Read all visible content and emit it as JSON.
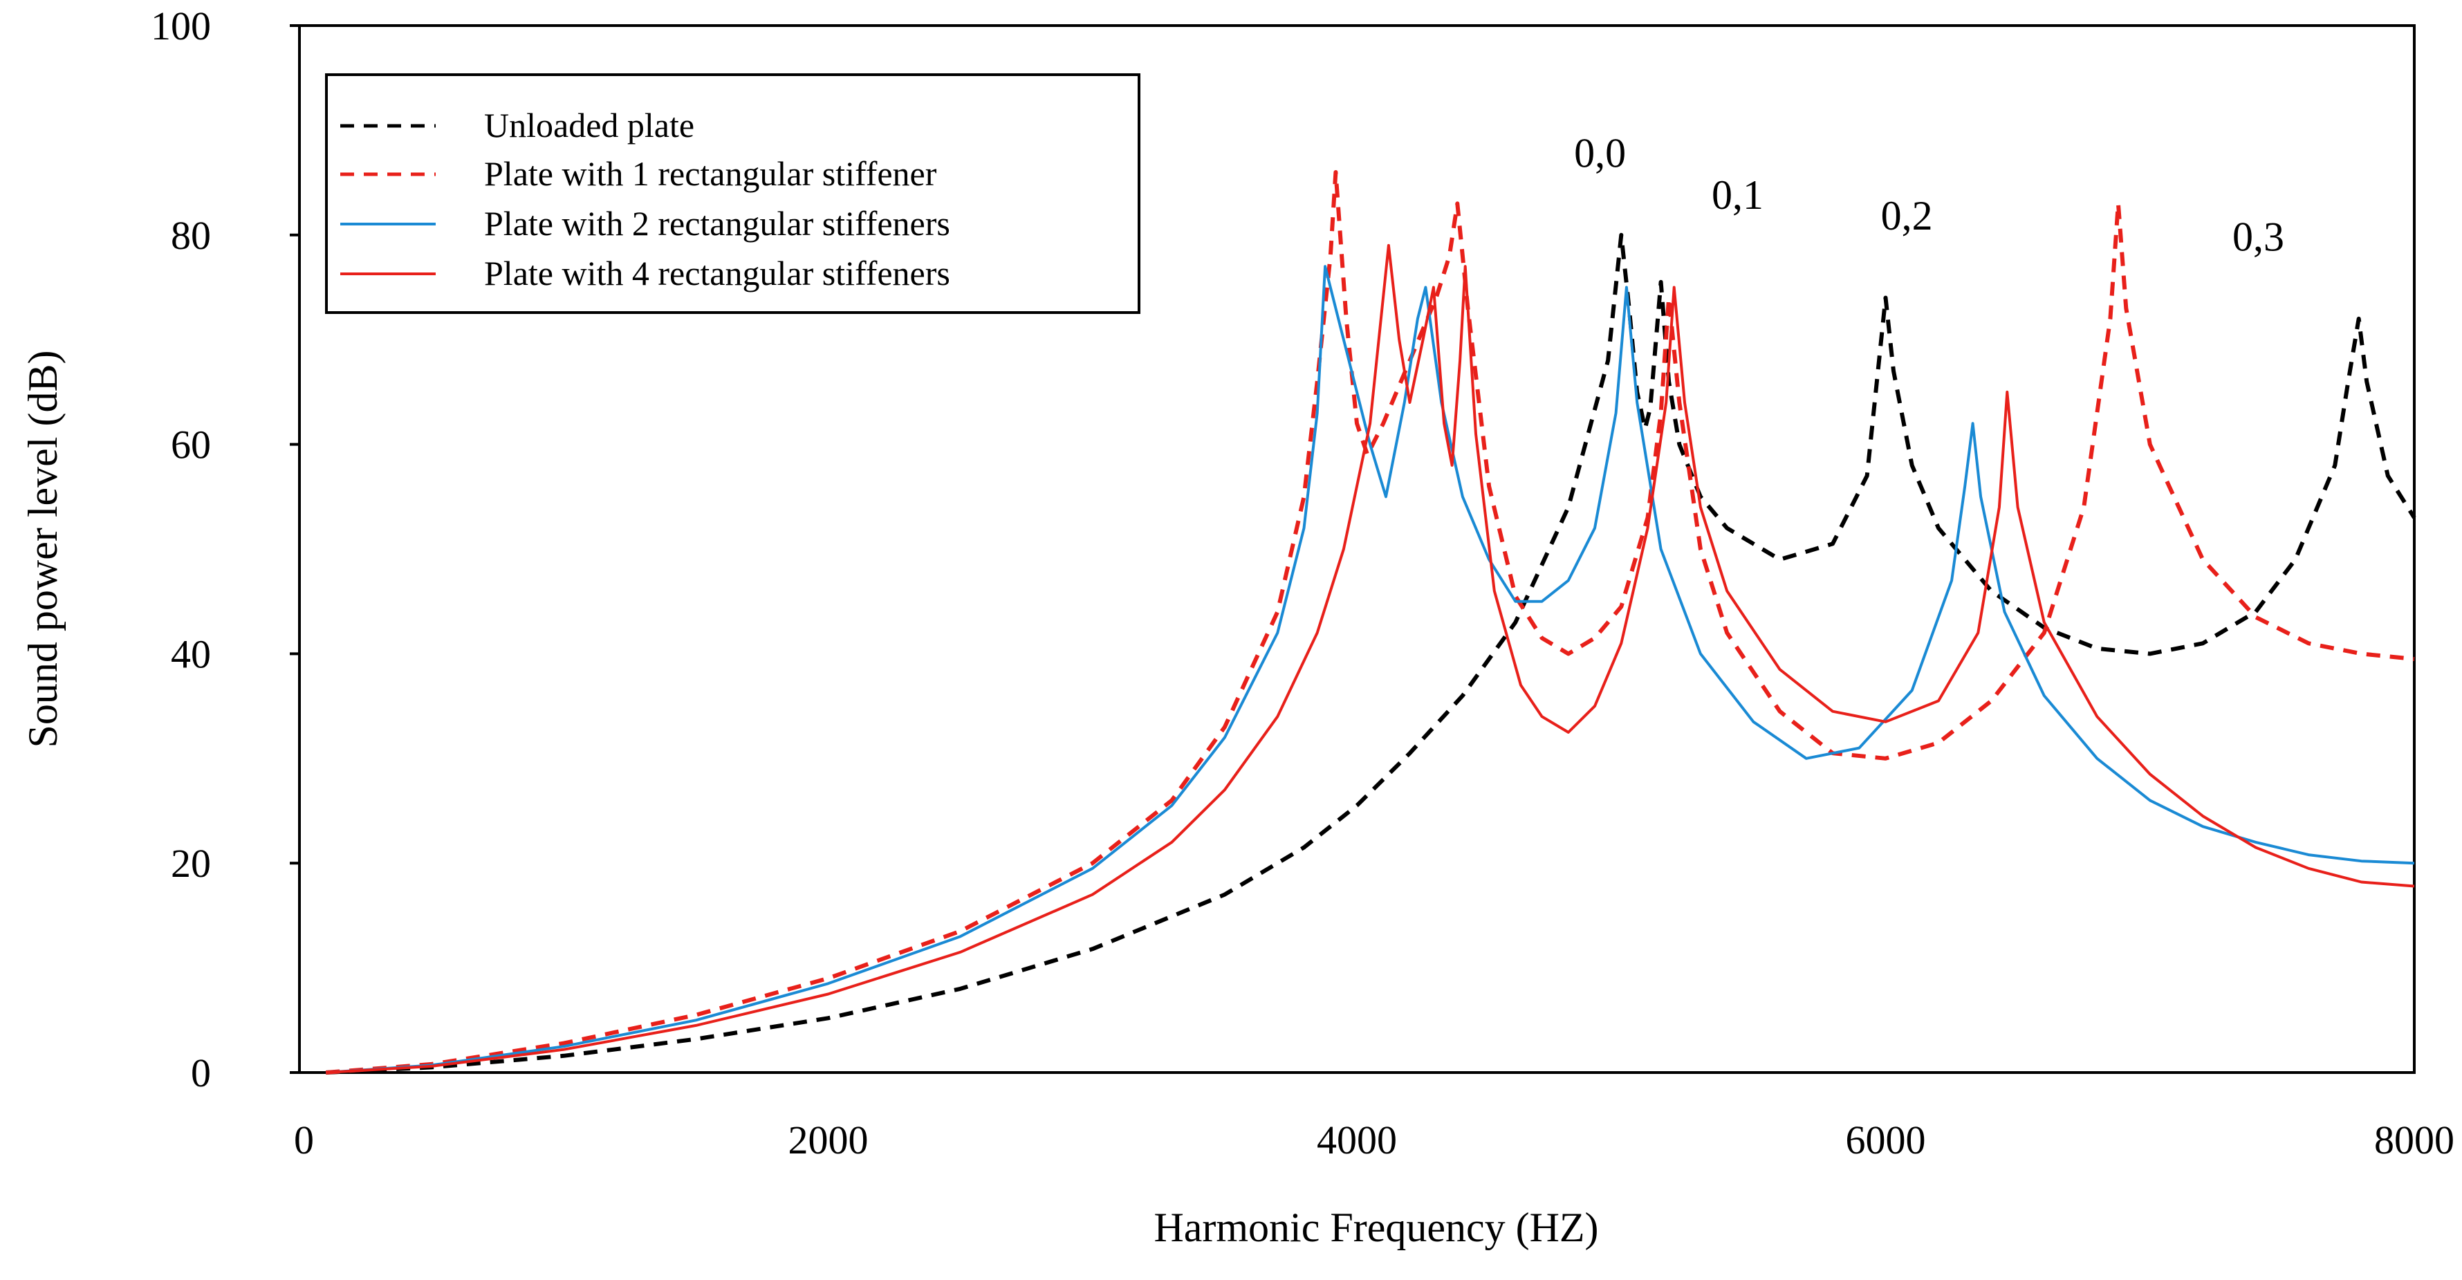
{
  "chart_data": {
    "type": "line",
    "title": "",
    "xlabel": "Harmonic Frequency (HZ)",
    "ylabel": "Sound power level (dB)",
    "xlim": [
      0,
      8000
    ],
    "ylim": [
      0,
      100
    ],
    "x_ticks": [
      {
        "value": 0,
        "label": "0"
      },
      {
        "value": 2000,
        "label": "2000"
      },
      {
        "value": 4000,
        "label": "4000"
      },
      {
        "value": 6000,
        "label": "6000"
      },
      {
        "value": 8000,
        "label": "8000"
      }
    ],
    "y_ticks": [
      {
        "value": 0,
        "label": "0"
      },
      {
        "value": 20,
        "label": "20"
      },
      {
        "value": 40,
        "label": "40"
      },
      {
        "value": 60,
        "label": "60"
      },
      {
        "value": 80,
        "label": "80"
      },
      {
        "value": 100,
        "label": "100"
      }
    ],
    "grid": false,
    "legend_position": "top-left",
    "series": [
      {
        "name": "Unloaded plate",
        "color": "#000000",
        "dash": "dashed",
        "points": [
          [
            100,
            0
          ],
          [
            500,
            0.5
          ],
          [
            1000,
            1.6
          ],
          [
            1500,
            3.2
          ],
          [
            2000,
            5.2
          ],
          [
            2500,
            8.0
          ],
          [
            3000,
            11.8
          ],
          [
            3500,
            17.0
          ],
          [
            3800,
            21.5
          ],
          [
            4000,
            25.5
          ],
          [
            4200,
            30.5
          ],
          [
            4400,
            36.0
          ],
          [
            4600,
            43.0
          ],
          [
            4800,
            54.0
          ],
          [
            4950,
            68.0
          ],
          [
            5000,
            80.0
          ],
          [
            5030,
            73.0
          ],
          [
            5060,
            65.0
          ],
          [
            5090,
            61.5
          ],
          [
            5110,
            63.5
          ],
          [
            5150,
            75.5
          ],
          [
            5180,
            66.0
          ],
          [
            5220,
            60.0
          ],
          [
            5300,
            55.0
          ],
          [
            5400,
            52.0
          ],
          [
            5600,
            49.0
          ],
          [
            5800,
            50.5
          ],
          [
            5930,
            57.0
          ],
          [
            6000,
            74.0
          ],
          [
            6030,
            67.0
          ],
          [
            6100,
            58.0
          ],
          [
            6200,
            52.0
          ],
          [
            6400,
            46.0
          ],
          [
            6600,
            42.5
          ],
          [
            6800,
            40.5
          ],
          [
            7000,
            40.0
          ],
          [
            7200,
            41.0
          ],
          [
            7400,
            44.0
          ],
          [
            7550,
            49.0
          ],
          [
            7700,
            58.0
          ],
          [
            7750,
            66.0
          ],
          [
            7790,
            72.0
          ],
          [
            7820,
            66.0
          ],
          [
            7900,
            57.0
          ],
          [
            8000,
            53.0
          ]
        ]
      },
      {
        "name": "Plate with 1 rectangular stiffener",
        "color": "#e8201a",
        "dash": "dashed",
        "points": [
          [
            100,
            0
          ],
          [
            500,
            0.8
          ],
          [
            1000,
            2.8
          ],
          [
            1500,
            5.5
          ],
          [
            2000,
            9.0
          ],
          [
            2500,
            13.5
          ],
          [
            3000,
            20.0
          ],
          [
            3300,
            26.0
          ],
          [
            3500,
            33.0
          ],
          [
            3700,
            44.0
          ],
          [
            3800,
            55.0
          ],
          [
            3850,
            66.0
          ],
          [
            3900,
            78.0
          ],
          [
            3920,
            86.0
          ],
          [
            3960,
            72.0
          ],
          [
            4000,
            62.0
          ],
          [
            4040,
            59.0
          ],
          [
            4100,
            62.0
          ],
          [
            4200,
            68.0
          ],
          [
            4300,
            74.0
          ],
          [
            4350,
            78.0
          ],
          [
            4380,
            83.0
          ],
          [
            4420,
            73.0
          ],
          [
            4500,
            56.0
          ],
          [
            4600,
            45.5
          ],
          [
            4700,
            41.5
          ],
          [
            4800,
            40.0
          ],
          [
            4900,
            41.5
          ],
          [
            5000,
            44.5
          ],
          [
            5100,
            53.0
          ],
          [
            5150,
            63.0
          ],
          [
            5180,
            74.0
          ],
          [
            5220,
            64.0
          ],
          [
            5300,
            50.0
          ],
          [
            5400,
            42.0
          ],
          [
            5600,
            34.5
          ],
          [
            5800,
            30.5
          ],
          [
            6000,
            30.0
          ],
          [
            6200,
            31.5
          ],
          [
            6400,
            35.5
          ],
          [
            6600,
            42.0
          ],
          [
            6750,
            54.0
          ],
          [
            6850,
            72.0
          ],
          [
            6880,
            83.0
          ],
          [
            6910,
            73.0
          ],
          [
            7000,
            60.0
          ],
          [
            7200,
            49.0
          ],
          [
            7400,
            43.5
          ],
          [
            7600,
            41.0
          ],
          [
            7800,
            40.0
          ],
          [
            8000,
            39.5
          ]
        ]
      },
      {
        "name": "Plate with 2 rectangular stiffeners",
        "color": "#1a8ad4",
        "dash": "solid",
        "points": [
          [
            100,
            0
          ],
          [
            500,
            0.7
          ],
          [
            1000,
            2.5
          ],
          [
            1500,
            5.0
          ],
          [
            2000,
            8.5
          ],
          [
            2500,
            13.0
          ],
          [
            3000,
            19.5
          ],
          [
            3300,
            25.5
          ],
          [
            3500,
            32.0
          ],
          [
            3700,
            42.0
          ],
          [
            3800,
            52.0
          ],
          [
            3850,
            63.0
          ],
          [
            3880,
            77.0
          ],
          [
            3950,
            70.0
          ],
          [
            4050,
            60.0
          ],
          [
            4110,
            55.0
          ],
          [
            4180,
            64.0
          ],
          [
            4230,
            72.0
          ],
          [
            4260,
            75.0
          ],
          [
            4320,
            64.0
          ],
          [
            4400,
            55.0
          ],
          [
            4500,
            49.0
          ],
          [
            4600,
            45.0
          ],
          [
            4700,
            45.0
          ],
          [
            4800,
            47.0
          ],
          [
            4900,
            52.0
          ],
          [
            4980,
            63.0
          ],
          [
            5020,
            75.0
          ],
          [
            5060,
            64.0
          ],
          [
            5150,
            50.0
          ],
          [
            5300,
            40.0
          ],
          [
            5500,
            33.5
          ],
          [
            5700,
            30.0
          ],
          [
            5900,
            31.0
          ],
          [
            6100,
            36.5
          ],
          [
            6250,
            47.0
          ],
          [
            6300,
            56.0
          ],
          [
            6330,
            62.0
          ],
          [
            6360,
            55.0
          ],
          [
            6450,
            44.0
          ],
          [
            6600,
            36.0
          ],
          [
            6800,
            30.0
          ],
          [
            7000,
            26.0
          ],
          [
            7200,
            23.5
          ],
          [
            7400,
            22.0
          ],
          [
            7600,
            20.8
          ],
          [
            7800,
            20.2
          ],
          [
            8000,
            20.0
          ]
        ]
      },
      {
        "name": "Plate with 4 rectangular stiffeners",
        "color": "#e8201a",
        "dash": "solid",
        "points": [
          [
            100,
            0
          ],
          [
            500,
            0.6
          ],
          [
            1000,
            2.2
          ],
          [
            1500,
            4.5
          ],
          [
            2000,
            7.5
          ],
          [
            2500,
            11.5
          ],
          [
            3000,
            17.0
          ],
          [
            3300,
            22.0
          ],
          [
            3500,
            27.0
          ],
          [
            3700,
            34.0
          ],
          [
            3850,
            42.0
          ],
          [
            3950,
            50.0
          ],
          [
            4050,
            62.0
          ],
          [
            4120,
            79.0
          ],
          [
            4160,
            70.0
          ],
          [
            4200,
            64.0
          ],
          [
            4250,
            70.0
          ],
          [
            4290,
            75.0
          ],
          [
            4330,
            62.0
          ],
          [
            4360,
            58.0
          ],
          [
            4390,
            68.0
          ],
          [
            4410,
            77.0
          ],
          [
            4450,
            61.0
          ],
          [
            4520,
            46.0
          ],
          [
            4620,
            37.0
          ],
          [
            4700,
            34.0
          ],
          [
            4800,
            32.5
          ],
          [
            4900,
            35.0
          ],
          [
            5000,
            41.0
          ],
          [
            5100,
            52.0
          ],
          [
            5170,
            64.0
          ],
          [
            5200,
            75.0
          ],
          [
            5240,
            64.0
          ],
          [
            5300,
            54.0
          ],
          [
            5400,
            46.0
          ],
          [
            5600,
            38.5
          ],
          [
            5800,
            34.5
          ],
          [
            6000,
            33.5
          ],
          [
            6200,
            35.5
          ],
          [
            6350,
            42.0
          ],
          [
            6430,
            54.0
          ],
          [
            6460,
            65.0
          ],
          [
            6500,
            54.0
          ],
          [
            6600,
            43.0
          ],
          [
            6800,
            34.0
          ],
          [
            7000,
            28.5
          ],
          [
            7200,
            24.5
          ],
          [
            7400,
            21.5
          ],
          [
            7600,
            19.5
          ],
          [
            7800,
            18.2
          ],
          [
            8000,
            17.8
          ]
        ]
      }
    ],
    "annotations": [
      {
        "text": "0,0",
        "x": 4920,
        "y": 86.5
      },
      {
        "text": "0,1",
        "x": 5440,
        "y": 82.5
      },
      {
        "text": "0,2",
        "x": 6080,
        "y": 80.5
      },
      {
        "text": "0,3",
        "x": 7410,
        "y": 78.5
      }
    ]
  }
}
